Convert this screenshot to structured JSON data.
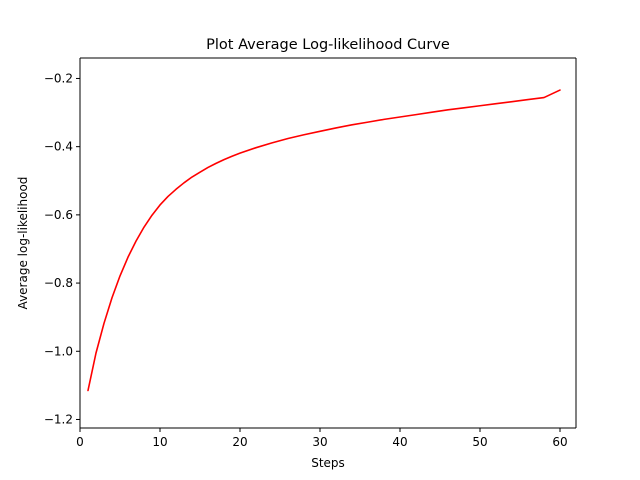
{
  "chart_data": {
    "type": "line",
    "title": "Plot Average Log-likelihood Curve",
    "xlabel": "Steps",
    "ylabel": "Average log-likelihood",
    "xlim": [
      -0.0,
      62.0
    ],
    "ylim": [
      -1.225,
      -0.14
    ],
    "xticks": [
      0,
      10,
      20,
      30,
      40,
      50,
      60
    ],
    "xtick_labels": [
      "0",
      "10",
      "20",
      "30",
      "40",
      "50",
      "60"
    ],
    "yticks": [
      -1.2,
      -1.0,
      -0.8,
      -0.6,
      -0.4,
      -0.2
    ],
    "ytick_labels": [
      "−1.2",
      "−1.0",
      "−0.8",
      "−0.6",
      "−0.4",
      "−0.2"
    ],
    "grid": false,
    "series": [
      {
        "color": "#ff0000",
        "x": [
          1,
          2,
          3,
          4,
          5,
          6,
          7,
          8,
          9,
          10,
          11,
          12,
          13,
          14,
          15,
          16,
          17,
          18,
          19,
          20,
          22,
          24,
          26,
          28,
          30,
          32,
          34,
          36,
          38,
          40,
          42,
          44,
          46,
          48,
          50,
          52,
          54,
          56,
          58,
          60
        ],
        "y": [
          -1.115,
          -1.005,
          -0.918,
          -0.843,
          -0.779,
          -0.724,
          -0.677,
          -0.636,
          -0.601,
          -0.571,
          -0.546,
          -0.525,
          -0.506,
          -0.489,
          -0.475,
          -0.461,
          -0.449,
          -0.438,
          -0.428,
          -0.419,
          -0.403,
          -0.389,
          -0.376,
          -0.365,
          -0.355,
          -0.345,
          -0.336,
          -0.328,
          -0.32,
          -0.313,
          -0.306,
          -0.299,
          -0.292,
          -0.286,
          -0.28,
          -0.274,
          -0.268,
          -0.262,
          -0.256,
          -0.234
        ]
      }
    ]
  }
}
